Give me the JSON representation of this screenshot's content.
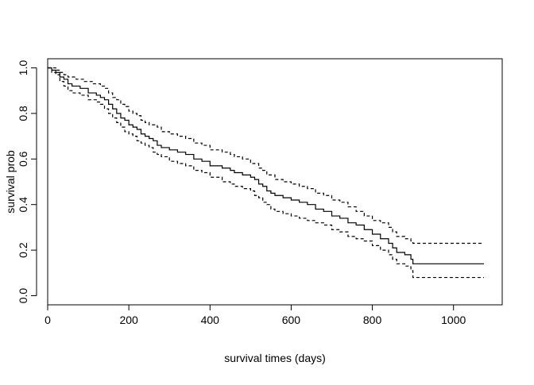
{
  "chart_data": {
    "type": "line",
    "title": "",
    "xlabel": "survival times (days)",
    "ylabel": "survival prob",
    "xlim": [
      0,
      1120
    ],
    "ylim": [
      -0.04,
      1.04
    ],
    "x_ticks": [
      0,
      200,
      400,
      600,
      800,
      1000
    ],
    "x_tick_labels": [
      "0",
      "200",
      "400",
      "600",
      "800",
      "1000"
    ],
    "y_ticks": [
      0.0,
      0.2,
      0.4,
      0.6,
      0.8,
      1.0
    ],
    "y_tick_labels": [
      "0.0",
      "0.2",
      "0.4",
      "0.6",
      "0.8",
      "1.0"
    ],
    "grid": false,
    "legend": "none",
    "step": true,
    "colors": {
      "line": "#000000",
      "axis": "#000000",
      "background": "#ffffff"
    },
    "series": [
      {
        "style": "solid",
        "points": [
          [
            0,
            1.0
          ],
          [
            5,
            1.0
          ],
          [
            10,
            0.99
          ],
          [
            20,
            0.98
          ],
          [
            30,
            0.96
          ],
          [
            40,
            0.95
          ],
          [
            50,
            0.93
          ],
          [
            60,
            0.92
          ],
          [
            80,
            0.91
          ],
          [
            100,
            0.89
          ],
          [
            120,
            0.88
          ],
          [
            130,
            0.87
          ],
          [
            140,
            0.86
          ],
          [
            150,
            0.84
          ],
          [
            160,
            0.82
          ],
          [
            170,
            0.8
          ],
          [
            180,
            0.78
          ],
          [
            190,
            0.77
          ],
          [
            200,
            0.75
          ],
          [
            210,
            0.74
          ],
          [
            220,
            0.73
          ],
          [
            230,
            0.71
          ],
          [
            240,
            0.7
          ],
          [
            250,
            0.69
          ],
          [
            260,
            0.68
          ],
          [
            270,
            0.66
          ],
          [
            280,
            0.65
          ],
          [
            300,
            0.64
          ],
          [
            320,
            0.63
          ],
          [
            340,
            0.62
          ],
          [
            360,
            0.6
          ],
          [
            380,
            0.59
          ],
          [
            400,
            0.57
          ],
          [
            430,
            0.56
          ],
          [
            450,
            0.55
          ],
          [
            460,
            0.54
          ],
          [
            480,
            0.53
          ],
          [
            500,
            0.52
          ],
          [
            510,
            0.51
          ],
          [
            520,
            0.49
          ],
          [
            530,
            0.48
          ],
          [
            540,
            0.46
          ],
          [
            550,
            0.45
          ],
          [
            560,
            0.44
          ],
          [
            580,
            0.43
          ],
          [
            600,
            0.42
          ],
          [
            620,
            0.41
          ],
          [
            640,
            0.4
          ],
          [
            660,
            0.38
          ],
          [
            680,
            0.37
          ],
          [
            700,
            0.35
          ],
          [
            720,
            0.34
          ],
          [
            740,
            0.32
          ],
          [
            760,
            0.31
          ],
          [
            780,
            0.29
          ],
          [
            800,
            0.27
          ],
          [
            820,
            0.25
          ],
          [
            840,
            0.23
          ],
          [
            850,
            0.21
          ],
          [
            860,
            0.19
          ],
          [
            880,
            0.18
          ],
          [
            895,
            0.16
          ],
          [
            900,
            0.14
          ],
          [
            1075,
            0.14
          ]
        ]
      },
      {
        "style": "dashed",
        "points": [
          [
            0,
            1.0
          ],
          [
            10,
            1.0
          ],
          [
            20,
            0.99
          ],
          [
            30,
            0.98
          ],
          [
            40,
            0.97
          ],
          [
            50,
            0.96
          ],
          [
            70,
            0.95
          ],
          [
            90,
            0.94
          ],
          [
            110,
            0.93
          ],
          [
            130,
            0.92
          ],
          [
            140,
            0.91
          ],
          [
            150,
            0.89
          ],
          [
            160,
            0.87
          ],
          [
            170,
            0.86
          ],
          [
            180,
            0.84
          ],
          [
            190,
            0.83
          ],
          [
            200,
            0.81
          ],
          [
            210,
            0.8
          ],
          [
            220,
            0.79
          ],
          [
            230,
            0.77
          ],
          [
            240,
            0.76
          ],
          [
            250,
            0.75
          ],
          [
            270,
            0.74
          ],
          [
            280,
            0.72
          ],
          [
            300,
            0.71
          ],
          [
            320,
            0.7
          ],
          [
            340,
            0.69
          ],
          [
            360,
            0.67
          ],
          [
            380,
            0.66
          ],
          [
            400,
            0.64
          ],
          [
            430,
            0.63
          ],
          [
            450,
            0.62
          ],
          [
            460,
            0.61
          ],
          [
            480,
            0.6
          ],
          [
            500,
            0.58
          ],
          [
            520,
            0.56
          ],
          [
            530,
            0.55
          ],
          [
            540,
            0.53
          ],
          [
            560,
            0.51
          ],
          [
            580,
            0.5
          ],
          [
            600,
            0.49
          ],
          [
            620,
            0.48
          ],
          [
            640,
            0.47
          ],
          [
            660,
            0.45
          ],
          [
            680,
            0.44
          ],
          [
            700,
            0.42
          ],
          [
            720,
            0.41
          ],
          [
            740,
            0.39
          ],
          [
            760,
            0.37
          ],
          [
            780,
            0.35
          ],
          [
            800,
            0.33
          ],
          [
            820,
            0.32
          ],
          [
            840,
            0.3
          ],
          [
            850,
            0.28
          ],
          [
            860,
            0.26
          ],
          [
            880,
            0.25
          ],
          [
            895,
            0.24
          ],
          [
            900,
            0.23
          ],
          [
            1075,
            0.23
          ]
        ]
      },
      {
        "style": "dashed",
        "points": [
          [
            0,
            1.0
          ],
          [
            10,
            0.98
          ],
          [
            20,
            0.97
          ],
          [
            30,
            0.94
          ],
          [
            40,
            0.92
          ],
          [
            50,
            0.9
          ],
          [
            60,
            0.89
          ],
          [
            80,
            0.88
          ],
          [
            100,
            0.86
          ],
          [
            120,
            0.85
          ],
          [
            130,
            0.84
          ],
          [
            140,
            0.82
          ],
          [
            150,
            0.8
          ],
          [
            160,
            0.78
          ],
          [
            170,
            0.76
          ],
          [
            180,
            0.74
          ],
          [
            190,
            0.72
          ],
          [
            200,
            0.71
          ],
          [
            210,
            0.7
          ],
          [
            220,
            0.68
          ],
          [
            230,
            0.67
          ],
          [
            240,
            0.66
          ],
          [
            250,
            0.65
          ],
          [
            260,
            0.63
          ],
          [
            270,
            0.62
          ],
          [
            280,
            0.61
          ],
          [
            300,
            0.59
          ],
          [
            320,
            0.58
          ],
          [
            340,
            0.57
          ],
          [
            360,
            0.55
          ],
          [
            380,
            0.54
          ],
          [
            400,
            0.52
          ],
          [
            430,
            0.5
          ],
          [
            450,
            0.49
          ],
          [
            460,
            0.48
          ],
          [
            480,
            0.47
          ],
          [
            500,
            0.46
          ],
          [
            510,
            0.44
          ],
          [
            520,
            0.43
          ],
          [
            530,
            0.41
          ],
          [
            540,
            0.4
          ],
          [
            550,
            0.38
          ],
          [
            560,
            0.37
          ],
          [
            580,
            0.36
          ],
          [
            600,
            0.35
          ],
          [
            620,
            0.34
          ],
          [
            640,
            0.33
          ],
          [
            660,
            0.32
          ],
          [
            680,
            0.31
          ],
          [
            700,
            0.29
          ],
          [
            720,
            0.28
          ],
          [
            740,
            0.26
          ],
          [
            760,
            0.25
          ],
          [
            780,
            0.24
          ],
          [
            800,
            0.22
          ],
          [
            820,
            0.2
          ],
          [
            840,
            0.18
          ],
          [
            850,
            0.16
          ],
          [
            860,
            0.14
          ],
          [
            880,
            0.13
          ],
          [
            895,
            0.11
          ],
          [
            900,
            0.08
          ],
          [
            1075,
            0.08
          ]
        ]
      }
    ]
  }
}
